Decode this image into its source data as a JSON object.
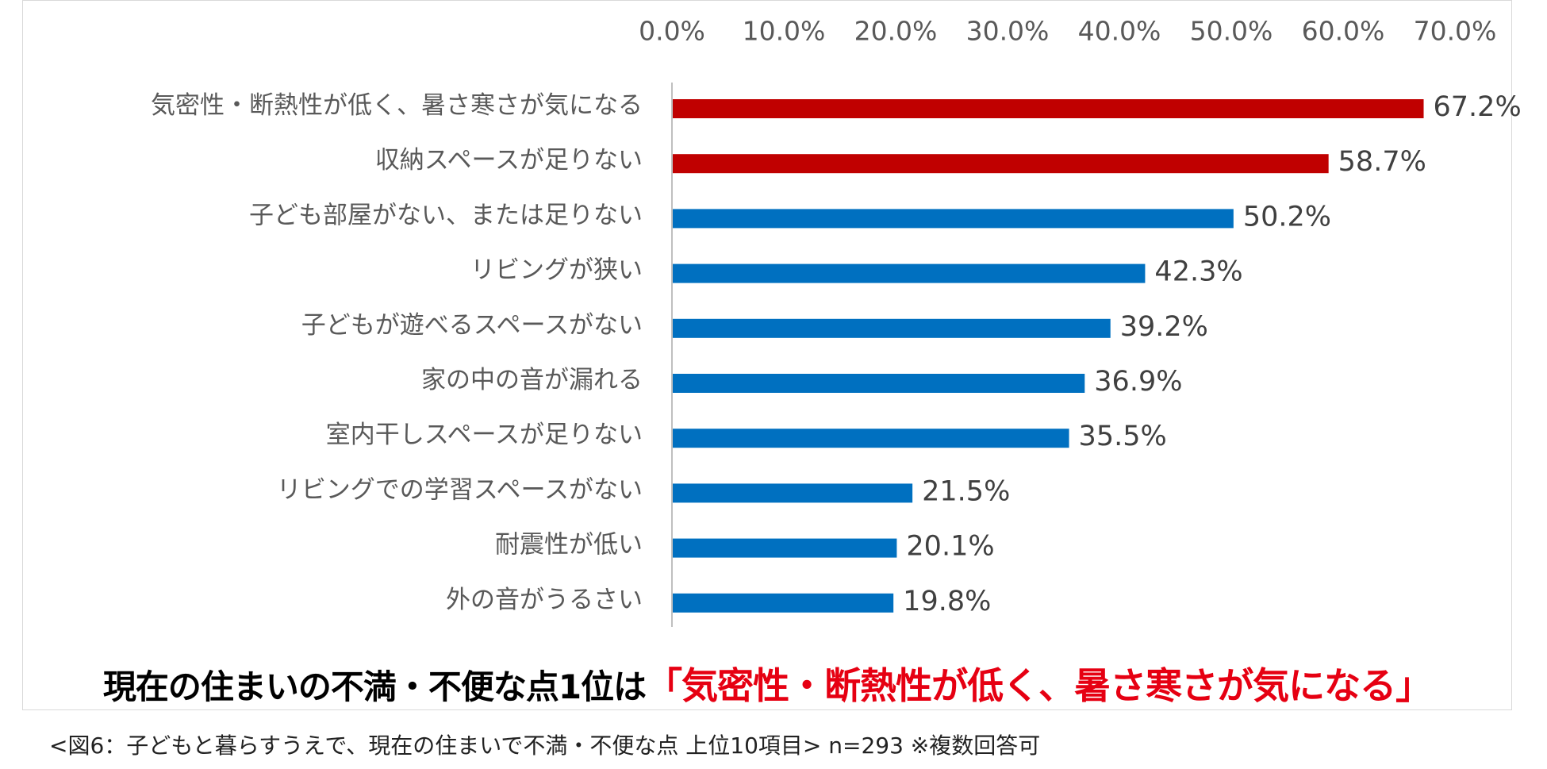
{
  "headline": {
    "prefix": "現在の住まいの不満・不便な点1位は",
    "highlight": "「気密性・断熱性が低く、暑さ寒さが気になる」"
  },
  "caption": "<図6：子どもと暮らすうえで、現在の住まいで不満・不便な点 上位10項目> n=293 ※複数回答可",
  "colors": {
    "highlight": "#c00000",
    "normal": "#0070c0",
    "axis": "#bfbfbf",
    "headline_red": "#e60012"
  },
  "chart_data": {
    "type": "bar",
    "orientation": "horizontal",
    "title": "",
    "xlabel": "",
    "ylabel": "",
    "xlim": [
      0,
      70
    ],
    "xticks": [
      0,
      10,
      20,
      30,
      40,
      50,
      60,
      70
    ],
    "tick_labels": [
      "0.0%",
      "10.0%",
      "20.0%",
      "30.0%",
      "40.0%",
      "50.0%",
      "60.0%",
      "70.0%"
    ],
    "axis_position": "top",
    "grid": false,
    "categories": [
      "気密性・断熱性が低く、暑さ寒さが気になる",
      "収納スペースが足りない",
      "子ども部屋がない、または足りない",
      "リビングが狭い",
      "子どもが遊べるスペースがない",
      "家の中の音が漏れる",
      "室内干しスペースが足りない",
      "リビングでの学習スペースがない",
      "耐震性が低い",
      "外の音がうるさい"
    ],
    "values": [
      67.2,
      58.7,
      50.2,
      42.3,
      39.2,
      36.9,
      35.5,
      21.5,
      20.1,
      19.8
    ],
    "value_labels": [
      "67.2%",
      "58.7%",
      "50.2%",
      "42.3%",
      "39.2%",
      "36.9%",
      "35.5%",
      "21.5%",
      "20.1%",
      "19.8%"
    ],
    "highlighted": [
      true,
      true,
      false,
      false,
      false,
      false,
      false,
      false,
      false,
      false
    ]
  }
}
